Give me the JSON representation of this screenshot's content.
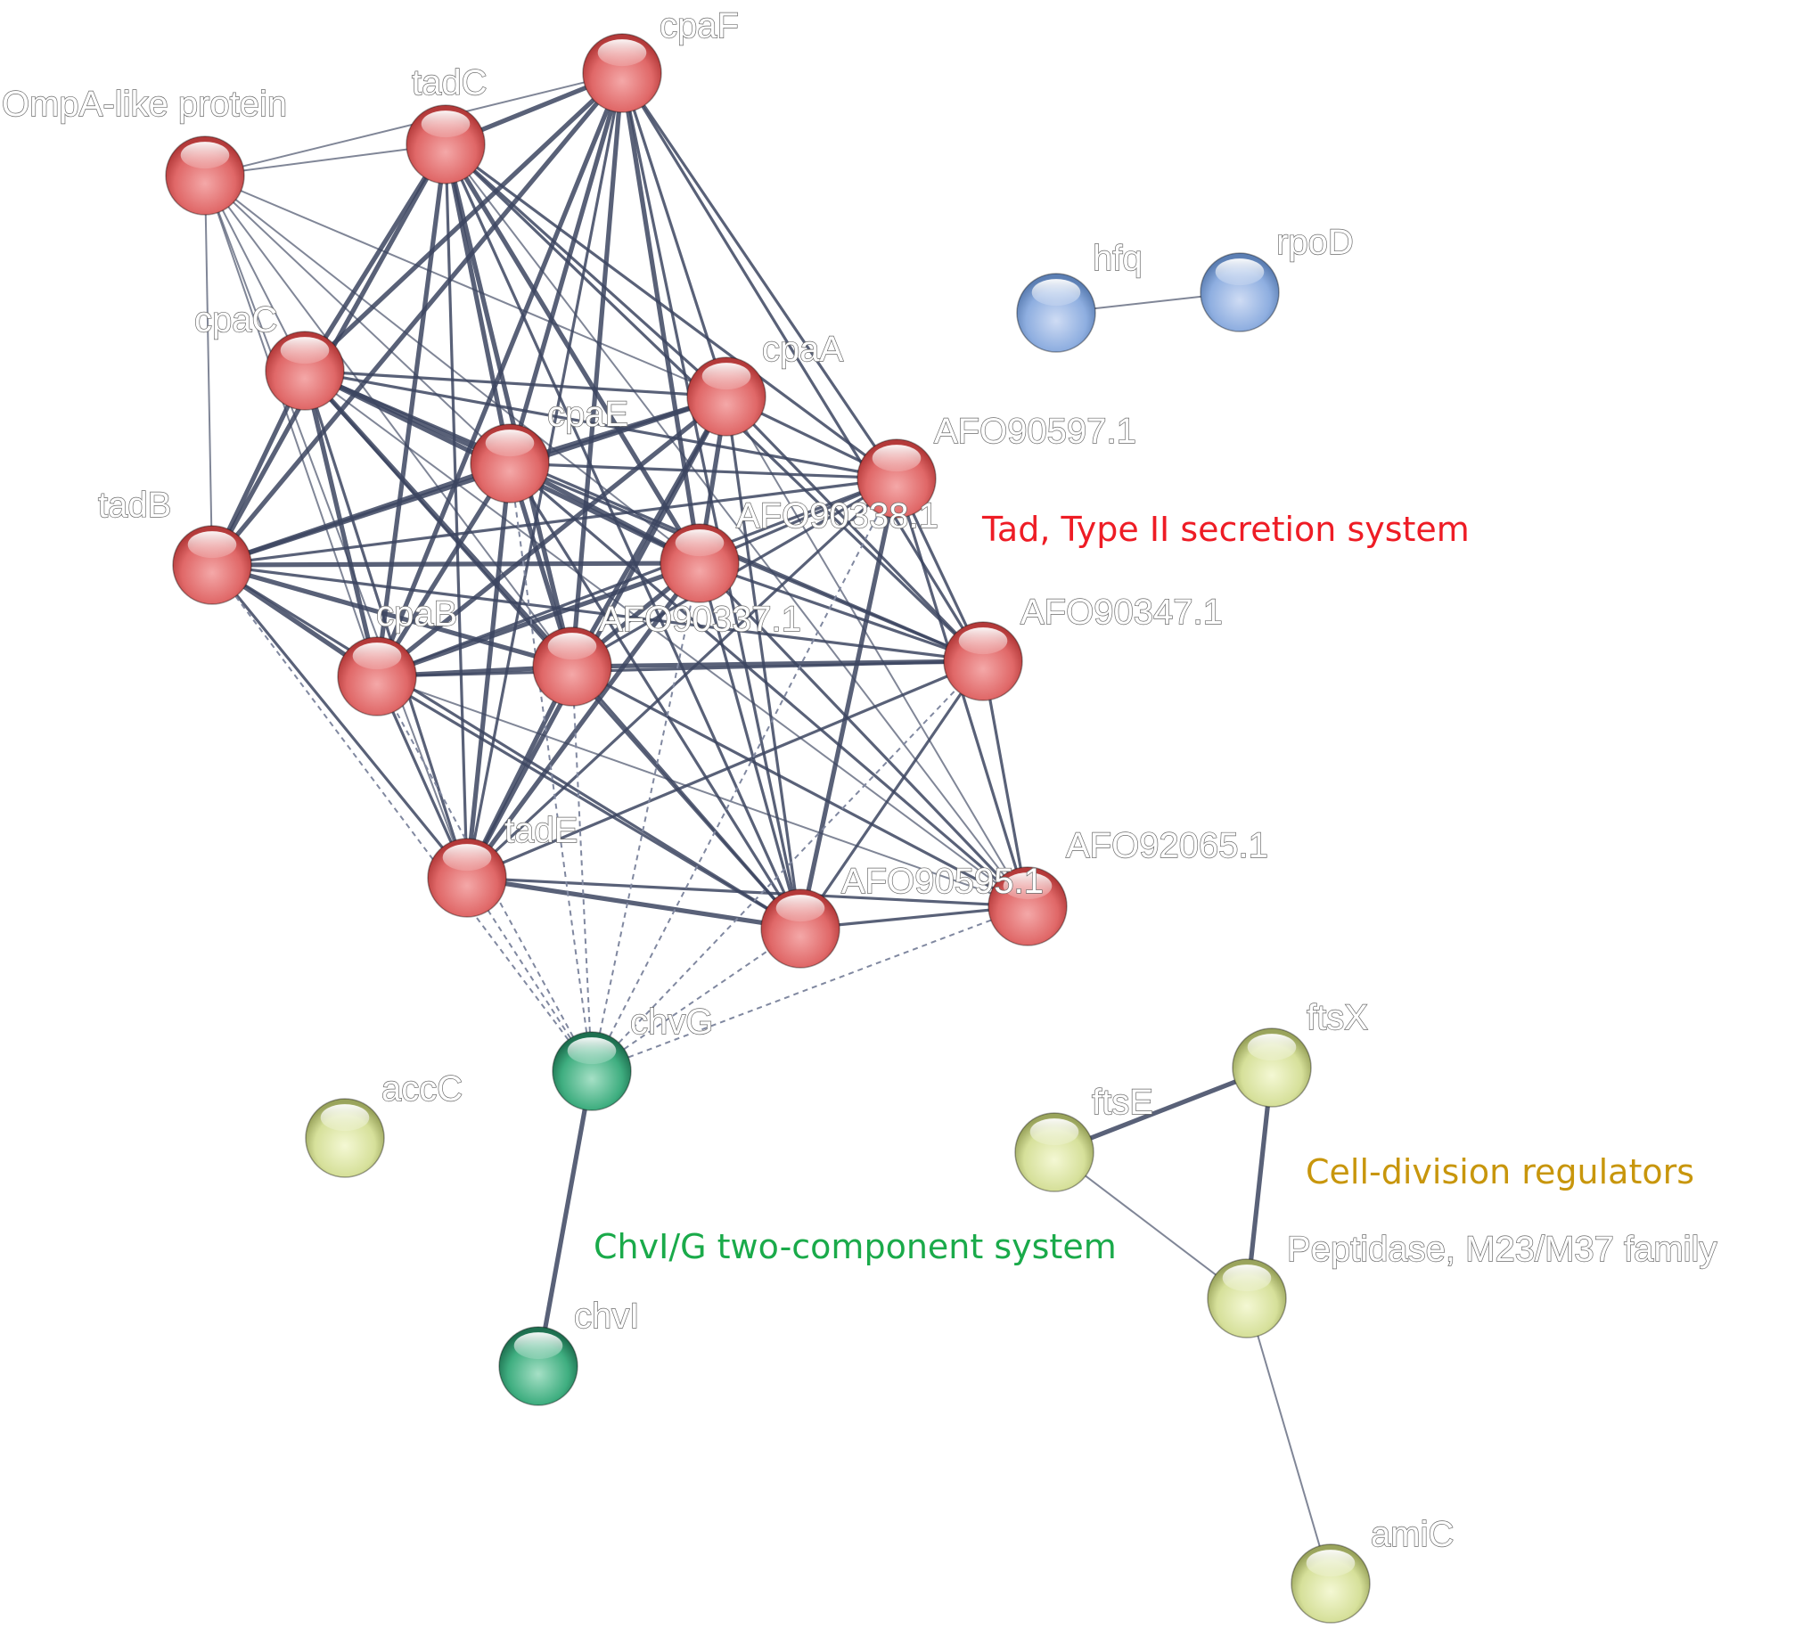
{
  "nodes": [
    {
      "id": "cpaF",
      "label": "cpaF",
      "group": "tad"
    },
    {
      "id": "tadC",
      "label": "tadC",
      "group": "tad"
    },
    {
      "id": "ompA",
      "label": "OmpA-like protein",
      "group": "tad"
    },
    {
      "id": "cpaC",
      "label": "cpaC",
      "group": "tad"
    },
    {
      "id": "cpaA",
      "label": "cpaA",
      "group": "tad"
    },
    {
      "id": "cpaE",
      "label": "cpaE",
      "group": "tad"
    },
    {
      "id": "AFO90597",
      "label": "AFO90597.1",
      "group": "tad"
    },
    {
      "id": "tadB",
      "label": "tadB",
      "group": "tad"
    },
    {
      "id": "AFO90338",
      "label": "AFO90338.1",
      "group": "tad"
    },
    {
      "id": "cpaB",
      "label": "cpaB",
      "group": "tad"
    },
    {
      "id": "AFO90337",
      "label": "AFO90337.1",
      "group": "tad"
    },
    {
      "id": "AFO90347",
      "label": "AFO90347.1",
      "group": "tad"
    },
    {
      "id": "tadE",
      "label": "tadE",
      "group": "tad"
    },
    {
      "id": "AFO90595",
      "label": "AFO90595.1",
      "group": "tad"
    },
    {
      "id": "AFO92065",
      "label": "AFO92065.1",
      "group": "tad"
    },
    {
      "id": "hfq",
      "label": "hfq",
      "group": "blue"
    },
    {
      "id": "rpoD",
      "label": "rpoD",
      "group": "blue"
    },
    {
      "id": "chvG",
      "label": "chvG",
      "group": "green"
    },
    {
      "id": "chvI",
      "label": "chvI",
      "group": "green"
    },
    {
      "id": "accC",
      "label": "accC",
      "group": "olive"
    },
    {
      "id": "ftsX",
      "label": "ftsX",
      "group": "olive"
    },
    {
      "id": "ftsE",
      "label": "ftsE",
      "group": "olive"
    },
    {
      "id": "peptidase",
      "label": "Peptidase, M23/M37 family",
      "group": "olive"
    },
    {
      "id": "amiC",
      "label": "amiC",
      "group": "olive"
    }
  ],
  "edges": [
    [
      "cpaF",
      "tadC",
      "s"
    ],
    [
      "cpaF",
      "ompA",
      "w"
    ],
    [
      "cpaF",
      "cpaC",
      "s"
    ],
    [
      "cpaF",
      "cpaE",
      "s"
    ],
    [
      "cpaF",
      "cpaA",
      "m"
    ],
    [
      "cpaF",
      "tadB",
      "s"
    ],
    [
      "cpaF",
      "AFO90338",
      "s"
    ],
    [
      "cpaF",
      "cpaB",
      "s"
    ],
    [
      "cpaF",
      "AFO90337",
      "s"
    ],
    [
      "cpaF",
      "AFO90597",
      "m"
    ],
    [
      "cpaF",
      "AFO90347",
      "m"
    ],
    [
      "cpaF",
      "tadE",
      "m"
    ],
    [
      "cpaF",
      "AFO90595",
      "m"
    ],
    [
      "tadC",
      "ompA",
      "w"
    ],
    [
      "tadC",
      "cpaC",
      "s"
    ],
    [
      "tadC",
      "cpaA",
      "m"
    ],
    [
      "tadC",
      "cpaE",
      "s"
    ],
    [
      "tadC",
      "tadB",
      "s"
    ],
    [
      "tadC",
      "AFO90338",
      "s"
    ],
    [
      "tadC",
      "cpaB",
      "s"
    ],
    [
      "tadC",
      "AFO90337",
      "s"
    ],
    [
      "tadC",
      "AFO90597",
      "m"
    ],
    [
      "tadC",
      "AFO90347",
      "m"
    ],
    [
      "tadC",
      "tadE",
      "m"
    ],
    [
      "tadC",
      "AFO90595",
      "m"
    ],
    [
      "tadC",
      "AFO92065",
      "w"
    ],
    [
      "ompA",
      "cpaC",
      "w"
    ],
    [
      "ompA",
      "tadB",
      "w"
    ],
    [
      "ompA",
      "cpaE",
      "w"
    ],
    [
      "ompA",
      "cpaB",
      "w"
    ],
    [
      "ompA",
      "AFO90337",
      "w"
    ],
    [
      "ompA",
      "AFO90338",
      "w"
    ],
    [
      "ompA",
      "cpaA",
      "w"
    ],
    [
      "ompA",
      "tadE",
      "w"
    ],
    [
      "cpaC",
      "cpaA",
      "m"
    ],
    [
      "cpaC",
      "cpaE",
      "s"
    ],
    [
      "cpaC",
      "tadB",
      "s"
    ],
    [
      "cpaC",
      "AFO90338",
      "s"
    ],
    [
      "cpaC",
      "cpaB",
      "s"
    ],
    [
      "cpaC",
      "AFO90337",
      "s"
    ],
    [
      "cpaC",
      "AFO90597",
      "m"
    ],
    [
      "cpaC",
      "AFO90347",
      "m"
    ],
    [
      "cpaC",
      "tadE",
      "m"
    ],
    [
      "cpaC",
      "AFO90595",
      "m"
    ],
    [
      "cpaC",
      "AFO92065",
      "w"
    ],
    [
      "cpaA",
      "cpaE",
      "s"
    ],
    [
      "cpaA",
      "tadB",
      "s"
    ],
    [
      "cpaA",
      "AFO90338",
      "s"
    ],
    [
      "cpaA",
      "cpaB",
      "s"
    ],
    [
      "cpaA",
      "AFO90337",
      "s"
    ],
    [
      "cpaA",
      "AFO90597",
      "m"
    ],
    [
      "cpaA",
      "AFO90347",
      "m"
    ],
    [
      "cpaA",
      "tadE",
      "s"
    ],
    [
      "cpaA",
      "AFO90595",
      "m"
    ],
    [
      "cpaA",
      "AFO92065",
      "w"
    ],
    [
      "cpaE",
      "tadB",
      "s"
    ],
    [
      "cpaE",
      "AFO90338",
      "s"
    ],
    [
      "cpaE",
      "cpaB",
      "s"
    ],
    [
      "cpaE",
      "AFO90337",
      "s"
    ],
    [
      "cpaE",
      "AFO90597",
      "m"
    ],
    [
      "cpaE",
      "AFO90347",
      "m"
    ],
    [
      "cpaE",
      "tadE",
      "s"
    ],
    [
      "cpaE",
      "AFO90595",
      "m"
    ],
    [
      "cpaE",
      "AFO92065",
      "m"
    ],
    [
      "AFO90597",
      "tadB",
      "m"
    ],
    [
      "AFO90597",
      "AFO90338",
      "m"
    ],
    [
      "AFO90597",
      "cpaB",
      "m"
    ],
    [
      "AFO90597",
      "AFO90337",
      "m"
    ],
    [
      "AFO90597",
      "AFO90347",
      "m"
    ],
    [
      "AFO90597",
      "tadE",
      "m"
    ],
    [
      "AFO90597",
      "AFO90595",
      "s"
    ],
    [
      "AFO90597",
      "AFO92065",
      "m"
    ],
    [
      "tadB",
      "AFO90338",
      "s"
    ],
    [
      "tadB",
      "cpaB",
      "s"
    ],
    [
      "tadB",
      "AFO90337",
      "s"
    ],
    [
      "tadB",
      "AFO90347",
      "m"
    ],
    [
      "tadB",
      "tadE",
      "m"
    ],
    [
      "tadB",
      "AFO90595",
      "m"
    ],
    [
      "AFO90338",
      "cpaB",
      "s"
    ],
    [
      "AFO90338",
      "AFO90337",
      "s"
    ],
    [
      "AFO90338",
      "AFO90347",
      "m"
    ],
    [
      "AFO90338",
      "tadE",
      "s"
    ],
    [
      "AFO90338",
      "AFO90595",
      "m"
    ],
    [
      "AFO90338",
      "AFO92065",
      "m"
    ],
    [
      "cpaB",
      "AFO90337",
      "s"
    ],
    [
      "cpaB",
      "AFO90347",
      "m"
    ],
    [
      "cpaB",
      "tadE",
      "m"
    ],
    [
      "cpaB",
      "AFO90595",
      "m"
    ],
    [
      "cpaB",
      "AFO92065",
      "w"
    ],
    [
      "AFO90337",
      "AFO90347",
      "s"
    ],
    [
      "AFO90337",
      "tadE",
      "s"
    ],
    [
      "AFO90337",
      "AFO90595",
      "m"
    ],
    [
      "AFO90337",
      "AFO92065",
      "m"
    ],
    [
      "AFO90347",
      "tadE",
      "m"
    ],
    [
      "AFO90347",
      "AFO90595",
      "m"
    ],
    [
      "AFO90347",
      "AFO92065",
      "m"
    ],
    [
      "tadE",
      "AFO90595",
      "s"
    ],
    [
      "tadE",
      "AFO92065",
      "m"
    ],
    [
      "AFO90595",
      "AFO92065",
      "m"
    ],
    [
      "hfq",
      "rpoD",
      "w"
    ],
    [
      "chvG",
      "chvI",
      "s"
    ],
    [
      "ftsE",
      "ftsX",
      "s"
    ],
    [
      "ftsE",
      "peptidase",
      "w"
    ],
    [
      "ftsX",
      "peptidase",
      "s"
    ],
    [
      "peptidase",
      "amiC",
      "w"
    ]
  ],
  "dashed_edges": [
    [
      "chvG",
      "tadB"
    ],
    [
      "chvG",
      "cpaB"
    ],
    [
      "chvG",
      "cpaE"
    ],
    [
      "chvG",
      "AFO90338"
    ],
    [
      "chvG",
      "AFO90337"
    ],
    [
      "chvG",
      "tadE"
    ],
    [
      "chvG",
      "AFO90595"
    ],
    [
      "chvG",
      "AFO92065"
    ],
    [
      "chvG",
      "AFO90347"
    ],
    [
      "chvG",
      "AFO90597"
    ]
  ],
  "cluster_labels": {
    "tad": {
      "text": "Tad, Type II secretion system",
      "color": "#ee1c25"
    },
    "cell_division": {
      "text": "Cell-division regulators",
      "color": "#c8960c"
    },
    "chv": {
      "text": "ChvI/G two-component system",
      "color": "#1aaa4a"
    }
  },
  "colors": {
    "tad": "#e06868",
    "blue": "#8eaee0",
    "green": "#3fae80",
    "olive": "#d6e09a",
    "edge": "#3c4560"
  }
}
